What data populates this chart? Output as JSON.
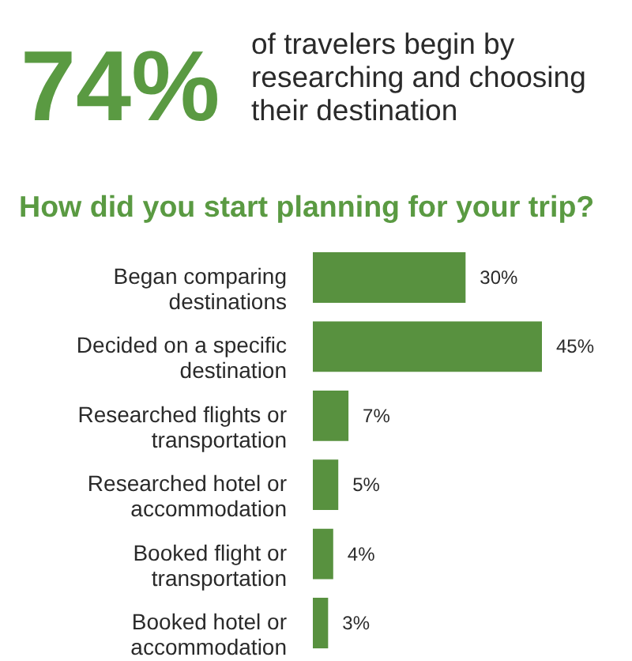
{
  "chart_data": {
    "type": "bar",
    "orientation": "horizontal",
    "title": "How did you start planning for your trip?",
    "annotations": [
      "74%",
      "of travelers begin by researching and choosing their destination"
    ],
    "categories": [
      "Began comparing destinations",
      "Decided on a specific destination",
      "Researched flights or transportation",
      "Researched hotel or accommodation",
      "Booked flight or transportation",
      "Booked hotel or accommodation"
    ],
    "values": [
      30,
      45,
      7,
      5,
      4,
      3
    ],
    "value_labels": [
      "30%",
      "45%",
      "7%",
      "5%",
      "4%",
      "3%"
    ],
    "color": "#58913f"
  }
}
